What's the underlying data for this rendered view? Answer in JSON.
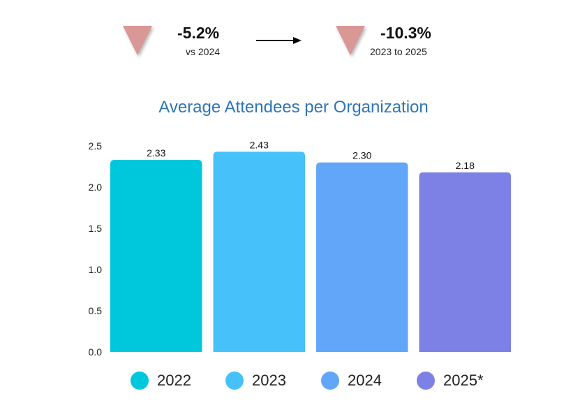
{
  "kpis": [
    {
      "value": "-5.2%",
      "sub": "vs 2024",
      "direction": "down"
    },
    {
      "value": "-10.3%",
      "sub": "2023 to 2025",
      "direction": "down"
    }
  ],
  "icons": {
    "kpi": "down-triangle-icon",
    "connector": "right-arrow-icon"
  },
  "colors": {
    "down": "#d99795",
    "title": "#2e75b6"
  },
  "chart_data": {
    "type": "bar",
    "title": "Average Attendees per Organization",
    "categories": [
      "2022",
      "2023",
      "2024",
      "2025*"
    ],
    "values": [
      2.33,
      2.43,
      2.3,
      2.18
    ],
    "value_labels": [
      "2.33",
      "2.43",
      "2.30",
      "2.18"
    ],
    "colors": [
      "#00c8dc",
      "#47c1fa",
      "#62a6fa",
      "#7d81e6"
    ],
    "yticks": [
      "0.0",
      "0.5",
      "1.0",
      "1.5",
      "2.0",
      "2.5"
    ],
    "ylim": [
      0,
      2.5
    ],
    "grid": false,
    "legend": "bottom"
  }
}
